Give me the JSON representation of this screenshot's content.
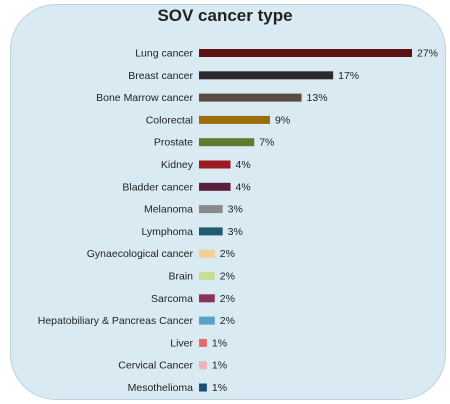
{
  "chart_data": {
    "type": "bar",
    "orientation": "horizontal",
    "title": "SOV cancer type",
    "categories": [
      "Lung cancer",
      "Breast cancer",
      "Bone Marrow cancer",
      "Colorectal",
      "Prostate",
      "Kidney",
      "Bladder cancer",
      "Melanoma",
      "Lymphoma",
      "Gynaecological cancer",
      "Brain",
      "Sarcoma",
      "Hepatobiliary & Pancreas Cancer",
      "Liver",
      "Cervical Cancer",
      "Mesothelioma"
    ],
    "values": [
      27,
      17,
      13,
      9,
      7,
      4,
      4,
      3,
      3,
      2,
      2,
      2,
      2,
      1,
      1,
      1
    ],
    "value_labels": [
      "27%",
      "17%",
      "13%",
      "9%",
      "7%",
      "4%",
      "4%",
      "3%",
      "3%",
      "2%",
      "2%",
      "2%",
      "2%",
      "1%",
      "1%",
      "1%"
    ],
    "colors": [
      "#5c0f14",
      "#2b2b2b",
      "#5b4c43",
      "#9c6b0c",
      "#5e7a2c",
      "#9a1b1f",
      "#5a1f3a",
      "#8a8a8a",
      "#1f5a6e",
      "#f3d08f",
      "#c9dd95",
      "#8c3060",
      "#5aa0c8",
      "#e9686a",
      "#efb2b6",
      "#1d4f73"
    ],
    "xlabel": "",
    "ylabel": "",
    "xlim": [
      0,
      27
    ],
    "grid": false,
    "legend": "none"
  }
}
